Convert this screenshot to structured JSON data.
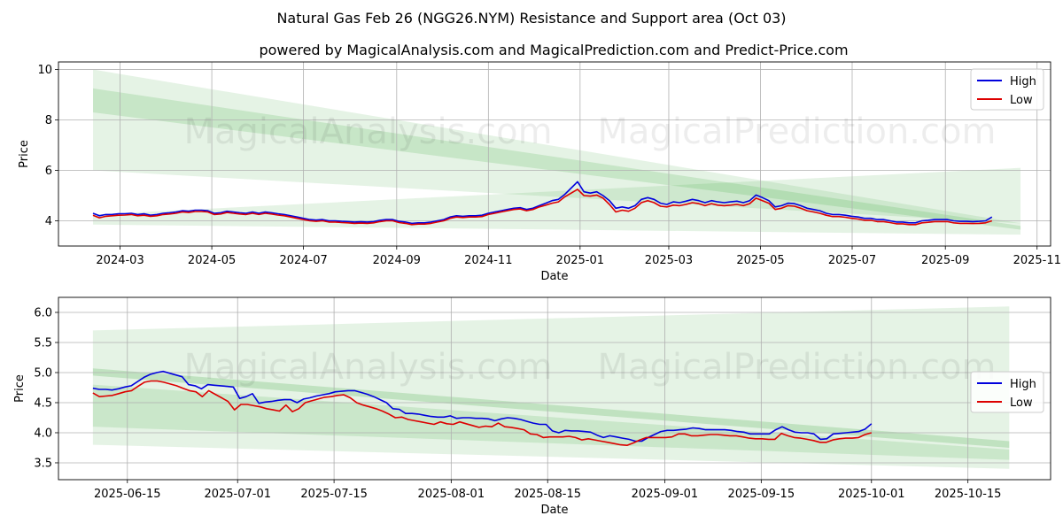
{
  "title": "Natural Gas Feb 26 (NGG26.NYM) Resistance and Support area (Oct 03)",
  "subtitle": "powered by MagicalAnalysis.com and MagicalPrediction.com and Predict-Price.com",
  "watermark": "MagicalAnalysis.com    MagicalPrediction.com",
  "colors": {
    "high": "#0000dd",
    "low": "#dd0000",
    "band": "#2ca02c"
  },
  "chart_data": [
    {
      "type": "line",
      "name": "full-range",
      "xlabel": "Date",
      "ylabel": "Price",
      "x_start": "2024-02-12",
      "x_end": "2025-10-02",
      "xlim": [
        "2024-01-20",
        "2025-11-10"
      ],
      "ylim": [
        3.0,
        10.3
      ],
      "yticks": [
        4,
        6,
        8,
        10
      ],
      "ytick_labels": [
        "4",
        "6",
        "8",
        "10"
      ],
      "xticks": [
        "2024-03-01",
        "2024-05-01",
        "2024-07-01",
        "2024-09-01",
        "2024-11-01",
        "2025-01-01",
        "2025-03-01",
        "2025-05-01",
        "2025-07-01",
        "2025-09-01",
        "2025-11-01"
      ],
      "xtick_labels": [
        "2024-03",
        "2024-05",
        "2024-07",
        "2024-09",
        "2024-11",
        "2025-01",
        "2025-03",
        "2025-05",
        "2025-07",
        "2025-09",
        "2025-11"
      ],
      "legend": {
        "position": "top-right",
        "entries": [
          "High",
          "Low"
        ]
      },
      "bands": [
        {
          "x": [
            "2024-02-12",
            "2025-10-21"
          ],
          "upper": [
            10.0,
            3.9
          ],
          "lower": [
            6.0,
            3.9
          ],
          "opacity": 0.12
        },
        {
          "x": [
            "2024-02-12",
            "2025-10-21"
          ],
          "upper": [
            9.25,
            3.8
          ],
          "lower": [
            8.3,
            3.65
          ],
          "opacity": 0.16
        },
        {
          "x": [
            "2024-02-12",
            "2025-10-21"
          ],
          "upper": [
            4.25,
            6.1
          ],
          "lower": [
            3.85,
            3.45
          ],
          "opacity": 0.12
        }
      ],
      "series": [
        {
          "name": "High",
          "values": [
            4.3,
            4.2,
            4.25,
            4.25,
            4.28,
            4.28,
            4.3,
            4.25,
            4.28,
            4.22,
            4.25,
            4.3,
            4.32,
            4.35,
            4.4,
            4.38,
            4.42,
            4.42,
            4.4,
            4.3,
            4.32,
            4.38,
            4.35,
            4.32,
            4.3,
            4.35,
            4.3,
            4.35,
            4.32,
            4.28,
            4.25,
            4.2,
            4.15,
            4.1,
            4.05,
            4.03,
            4.05,
            4.0,
            4.0,
            3.98,
            3.97,
            3.95,
            3.96,
            3.95,
            3.97,
            4.02,
            4.05,
            4.05,
            3.98,
            3.95,
            3.9,
            3.92,
            3.92,
            3.95,
            4.0,
            4.05,
            4.15,
            4.2,
            4.18,
            4.2,
            4.2,
            4.22,
            4.3,
            4.35,
            4.4,
            4.45,
            4.5,
            4.52,
            4.45,
            4.5,
            4.6,
            4.7,
            4.8,
            4.85,
            5.05,
            5.3,
            5.55,
            5.15,
            5.1,
            5.15,
            5.0,
            4.8,
            4.5,
            4.55,
            4.5,
            4.6,
            4.85,
            4.92,
            4.85,
            4.7,
            4.65,
            4.75,
            4.72,
            4.78,
            4.85,
            4.8,
            4.72,
            4.8,
            4.75,
            4.72,
            4.75,
            4.78,
            4.72,
            4.8,
            5.02,
            4.92,
            4.8,
            4.55,
            4.6,
            4.7,
            4.68,
            4.6,
            4.5,
            4.45,
            4.4,
            4.3,
            4.25,
            4.25,
            4.22,
            4.18,
            4.15,
            4.1,
            4.1,
            4.05,
            4.05,
            4.0,
            3.95,
            3.95,
            3.92,
            3.92,
            4.0,
            4.02,
            4.05,
            4.05,
            4.05,
            4.0,
            3.98,
            3.98,
            3.97,
            3.98,
            4.0,
            4.15
          ]
        },
        {
          "name": "Low",
          "values": [
            4.22,
            4.12,
            4.18,
            4.2,
            4.22,
            4.23,
            4.25,
            4.2,
            4.22,
            4.18,
            4.2,
            4.25,
            4.27,
            4.3,
            4.35,
            4.33,
            4.37,
            4.37,
            4.35,
            4.25,
            4.27,
            4.33,
            4.3,
            4.27,
            4.25,
            4.3,
            4.25,
            4.3,
            4.27,
            4.23,
            4.2,
            4.15,
            4.1,
            4.05,
            4.0,
            3.98,
            4.0,
            3.95,
            3.95,
            3.93,
            3.92,
            3.9,
            3.91,
            3.9,
            3.92,
            3.97,
            4.0,
            4.0,
            3.93,
            3.9,
            3.85,
            3.87,
            3.87,
            3.9,
            3.95,
            4.0,
            4.1,
            4.15,
            4.13,
            4.15,
            4.15,
            4.17,
            4.25,
            4.3,
            4.35,
            4.4,
            4.45,
            4.47,
            4.4,
            4.45,
            4.55,
            4.62,
            4.7,
            4.75,
            4.95,
            5.1,
            5.25,
            5.0,
            4.98,
            5.02,
            4.9,
            4.65,
            4.35,
            4.42,
            4.38,
            4.5,
            4.72,
            4.8,
            4.72,
            4.58,
            4.55,
            4.62,
            4.6,
            4.65,
            4.72,
            4.68,
            4.6,
            4.68,
            4.62,
            4.6,
            4.62,
            4.65,
            4.6,
            4.68,
            4.9,
            4.8,
            4.7,
            4.45,
            4.5,
            4.6,
            4.58,
            4.5,
            4.4,
            4.35,
            4.3,
            4.22,
            4.17,
            4.17,
            4.14,
            4.1,
            4.07,
            4.02,
            4.02,
            3.97,
            3.97,
            3.93,
            3.88,
            3.88,
            3.85,
            3.85,
            3.92,
            3.94,
            3.97,
            3.97,
            3.97,
            3.92,
            3.9,
            3.9,
            3.89,
            3.9,
            3.92,
            4.0
          ]
        }
      ]
    },
    {
      "type": "line",
      "name": "recent-range",
      "xlabel": "Date",
      "ylabel": "Price",
      "x_start": "2025-06-10",
      "x_end": "2025-10-01",
      "xlim": [
        "2025-06-05",
        "2025-10-27"
      ],
      "ylim": [
        3.22,
        6.25
      ],
      "yticks": [
        3.5,
        4.0,
        4.5,
        5.0,
        5.5,
        6.0
      ],
      "ytick_labels": [
        "3.5",
        "4.0",
        "4.5",
        "5.0",
        "5.5",
        "6.0"
      ],
      "xticks": [
        "2025-06-15",
        "2025-07-01",
        "2025-07-15",
        "2025-08-01",
        "2025-08-15",
        "2025-09-01",
        "2025-09-15",
        "2025-10-01",
        "2025-10-15"
      ],
      "xtick_labels": [
        "2025-06-15",
        "2025-07-01",
        "2025-07-15",
        "2025-08-01",
        "2025-08-15",
        "2025-09-01",
        "2025-09-15",
        "2025-10-01",
        "2025-10-15"
      ],
      "legend": {
        "position": "center-right",
        "entries": [
          "High",
          "Low"
        ]
      },
      "bands": [
        {
          "x": [
            "2025-06-10",
            "2025-10-21"
          ],
          "upper": [
            5.7,
            6.1
          ],
          "lower": [
            3.8,
            3.4
          ],
          "opacity": 0.12
        },
        {
          "x": [
            "2025-06-10",
            "2025-10-21"
          ],
          "upper": [
            5.07,
            3.86
          ],
          "lower": [
            4.95,
            3.75
          ],
          "opacity": 0.2
        },
        {
          "x": [
            "2025-06-10",
            "2025-10-21"
          ],
          "upper": [
            4.8,
            3.72
          ],
          "lower": [
            4.1,
            3.55
          ],
          "opacity": 0.14
        }
      ],
      "series": [
        {
          "name": "High",
          "values": [
            4.74,
            4.72,
            4.72,
            4.71,
            4.73,
            4.76,
            4.78,
            4.85,
            4.92,
            4.97,
            5.0,
            5.02,
            4.99,
            4.96,
            4.93,
            4.8,
            4.78,
            4.73,
            4.8,
            4.79,
            4.78,
            4.77,
            4.76,
            4.57,
            4.6,
            4.65,
            4.49,
            4.51,
            4.52,
            4.54,
            4.55,
            4.55,
            4.5,
            4.56,
            4.58,
            4.61,
            4.63,
            4.65,
            4.68,
            4.69,
            4.7,
            4.7,
            4.67,
            4.64,
            4.6,
            4.55,
            4.5,
            4.4,
            4.39,
            4.32,
            4.32,
            4.31,
            4.29,
            4.27,
            4.26,
            4.26,
            4.28,
            4.24,
            4.25,
            4.25,
            4.24,
            4.24,
            4.23,
            4.2,
            4.23,
            4.25,
            4.24,
            4.22,
            4.19,
            4.16,
            4.14,
            4.14,
            4.03,
            4.0,
            4.04,
            4.03,
            4.03,
            4.02,
            4.01,
            3.96,
            3.92,
            3.95,
            3.93,
            3.91,
            3.89,
            3.86,
            3.86,
            3.92,
            3.97,
            4.02,
            4.04,
            4.04,
            4.05,
            4.06,
            4.08,
            4.07,
            4.05,
            4.05,
            4.05,
            4.05,
            4.04,
            4.02,
            4.01,
            3.98,
            3.98,
            3.98,
            3.98,
            4.05,
            4.1,
            4.05,
            4.01,
            4.0,
            4.0,
            3.98,
            3.89,
            3.9,
            3.98,
            3.99,
            4.0,
            4.01,
            4.02,
            4.06,
            4.15
          ]
        },
        {
          "name": "Low",
          "values": [
            4.66,
            4.6,
            4.61,
            4.62,
            4.65,
            4.68,
            4.7,
            4.77,
            4.84,
            4.86,
            4.86,
            4.84,
            4.81,
            4.78,
            4.74,
            4.7,
            4.68,
            4.6,
            4.7,
            4.64,
            4.58,
            4.52,
            4.38,
            4.47,
            4.47,
            4.45,
            4.43,
            4.4,
            4.38,
            4.36,
            4.46,
            4.35,
            4.4,
            4.5,
            4.53,
            4.56,
            4.59,
            4.6,
            4.62,
            4.63,
            4.58,
            4.5,
            4.46,
            4.43,
            4.4,
            4.36,
            4.31,
            4.25,
            4.26,
            4.22,
            4.2,
            4.18,
            4.16,
            4.14,
            4.18,
            4.15,
            4.14,
            4.18,
            4.15,
            4.12,
            4.09,
            4.11,
            4.1,
            4.16,
            4.1,
            4.09,
            4.07,
            4.05,
            3.98,
            3.97,
            3.92,
            3.93,
            3.93,
            3.93,
            3.94,
            3.92,
            3.88,
            3.9,
            3.88,
            3.86,
            3.84,
            3.82,
            3.8,
            3.79,
            3.83,
            3.88,
            3.92,
            3.92,
            3.92,
            3.92,
            3.93,
            3.98,
            3.98,
            3.95,
            3.95,
            3.96,
            3.97,
            3.97,
            3.96,
            3.95,
            3.95,
            3.93,
            3.91,
            3.9,
            3.9,
            3.89,
            3.89,
            3.99,
            3.95,
            3.92,
            3.91,
            3.89,
            3.87,
            3.84,
            3.84,
            3.88,
            3.9,
            3.91,
            3.91,
            3.92,
            3.97,
            4.0
          ]
        }
      ]
    }
  ]
}
